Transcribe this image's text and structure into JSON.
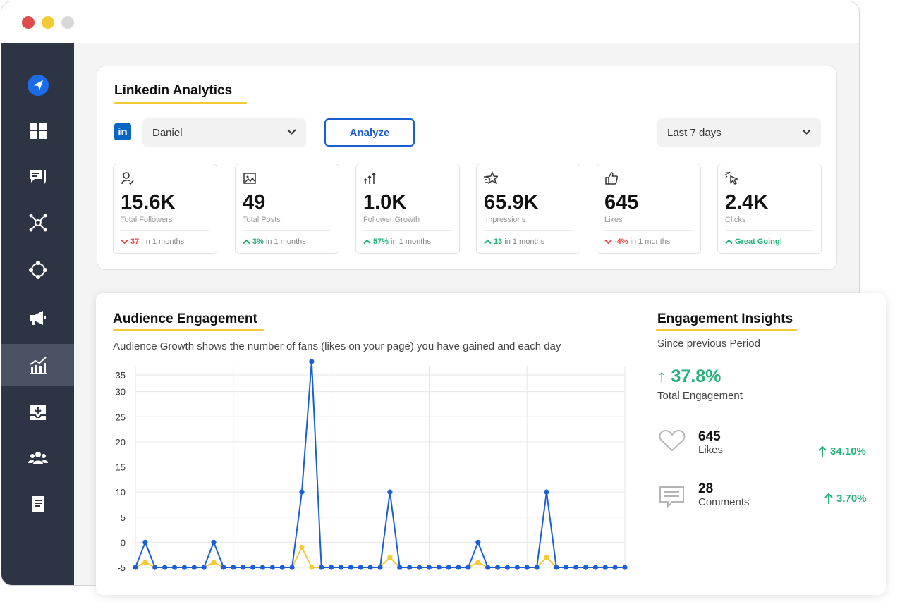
{
  "window": {
    "traffic_lights": [
      "#e04b4b",
      "#f5c934",
      "#d8d8d8"
    ]
  },
  "sidebar": {
    "items": [
      {
        "icon": "paper-plane-icon",
        "active": false
      },
      {
        "icon": "dashboard-icon",
        "active": false
      },
      {
        "icon": "chat-icon",
        "active": false
      },
      {
        "icon": "network-icon",
        "active": false
      },
      {
        "icon": "hub-icon",
        "active": false
      },
      {
        "icon": "megaphone-icon",
        "active": false
      },
      {
        "icon": "analytics-icon",
        "active": true
      },
      {
        "icon": "inbox-download-icon",
        "active": false
      },
      {
        "icon": "users-icon",
        "active": false
      },
      {
        "icon": "document-icon",
        "active": false
      }
    ],
    "colors": {
      "background": "#2d3545",
      "active": "#4a5263",
      "icon": "#ffffff",
      "brand": "#1a6ce8"
    }
  },
  "linkedin": {
    "title": "Linkedin Analytics",
    "logo_text": "in",
    "account_select": "Daniel",
    "analyze_label": "Analyze",
    "period_select": "Last 7 days",
    "stats": [
      {
        "icon": "user-check-icon",
        "value": "15.6K",
        "label": "Total Followers",
        "direction": "down",
        "change": "37",
        "suffix": "in 1 months"
      },
      {
        "icon": "image-icon",
        "value": "49",
        "label": "Total Posts",
        "direction": "up",
        "change": "3%",
        "suffix": "in 1 months"
      },
      {
        "icon": "growth-arrows-icon",
        "value": "1.0K",
        "label": "Follower Growth",
        "direction": "up",
        "change": "57%",
        "suffix": "in 1 months"
      },
      {
        "icon": "star-icon",
        "value": "65.9K",
        "label": "Impressions",
        "direction": "up",
        "change": "13",
        "suffix": "in 1 months"
      },
      {
        "icon": "thumbs-up-icon",
        "value": "645",
        "label": "Likes",
        "direction": "down",
        "change": "-4%",
        "suffix": "in 1 months"
      },
      {
        "icon": "cursor-click-icon",
        "value": "2.4K",
        "label": "Clicks",
        "direction": "up",
        "change": "Great Going!",
        "suffix": ""
      }
    ]
  },
  "engagement": {
    "title": "Audience Engagement",
    "description": "Audience Growth shows the number of fans (likes on your page) you have gained and each day"
  },
  "chart_data": {
    "type": "line",
    "title": "",
    "xlabel": "",
    "ylabel": "",
    "ylim": [
      -5,
      35
    ],
    "yticks": [
      "35",
      "30",
      "25",
      "20",
      "15",
      "10",
      "5",
      "0",
      "-5"
    ],
    "grid": true,
    "x": [
      0,
      1,
      2,
      3,
      4,
      5,
      6,
      7,
      8,
      9,
      10,
      11,
      12,
      13,
      14,
      15,
      16,
      17,
      18,
      19,
      20,
      21,
      22,
      23,
      24,
      25,
      26,
      27,
      28,
      29,
      30,
      31,
      32,
      33,
      34,
      35,
      36,
      37,
      38,
      39,
      40,
      41,
      42,
      43,
      44,
      45,
      46,
      47,
      48,
      49,
      50
    ],
    "series": [
      {
        "color": "#1a5fd8",
        "values": [
          -5,
          0,
          -5,
          -5,
          -5,
          -5,
          -5,
          -5,
          0,
          -5,
          -5,
          -5,
          -5,
          -5,
          -5,
          -5,
          -5,
          10,
          36,
          -5,
          -5,
          -5,
          -5,
          -5,
          -5,
          -5,
          10,
          -5,
          -5,
          -5,
          -5,
          -5,
          -5,
          -5,
          -5,
          0,
          -5,
          -5,
          -5,
          -5,
          -5,
          -5,
          10,
          -5,
          -5,
          -5,
          -5,
          -5,
          -5,
          -5,
          -5
        ]
      },
      {
        "color": "#f5c934",
        "values": [
          -5,
          -4,
          -5,
          -5,
          -5,
          -5,
          -5,
          -5,
          -4,
          -5,
          -5,
          -5,
          -5,
          -5,
          -5,
          -5,
          -5,
          -1,
          -5,
          -5,
          -5,
          -5,
          -5,
          -5,
          -5,
          -5,
          -3,
          -5,
          -5,
          -5,
          -5,
          -5,
          -5,
          -5,
          -5,
          -4,
          -5,
          -5,
          -5,
          -5,
          -5,
          -5,
          -3,
          -5,
          -5,
          -5,
          -5,
          -5,
          -5,
          -5,
          -5
        ]
      }
    ]
  },
  "insights": {
    "title": "Engagement Insights",
    "subtitle": "Since previous Period",
    "total_value": "↑ 37.8%",
    "total_label": "Total Engagement",
    "metrics": [
      {
        "icon": "heart-icon",
        "value": "645",
        "label": "Likes",
        "change": "34.10%"
      },
      {
        "icon": "comment-icon",
        "value": "28",
        "label": "Comments",
        "change": "3.70%"
      }
    ]
  }
}
